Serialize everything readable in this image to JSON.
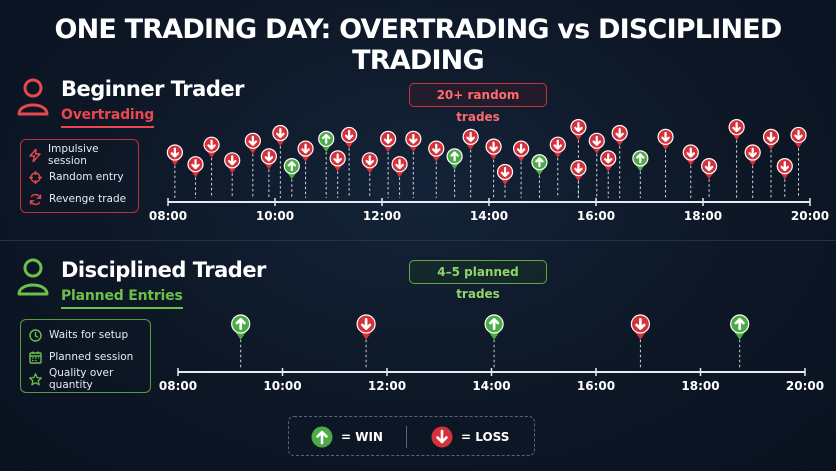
{
  "title": "ONE TRADING DAY: OVERTRADING vs DISCIPLINED TRADING",
  "beginner": {
    "name": "Beginner Trader",
    "subtitle": "Overtrading",
    "badge": "20+ random trades",
    "legend": [
      {
        "icon": "lightning-icon",
        "label": "Impulsive session"
      },
      {
        "icon": "crosshair-icon",
        "label": "Random entry"
      },
      {
        "icon": "refresh-icon",
        "label": "Revenge trade"
      }
    ],
    "axis_ticks": [
      "08:00",
      "10:00",
      "12:00",
      "14:00",
      "16:00",
      "18:00",
      "20:00"
    ],
    "trades": [
      {
        "time": 8.15,
        "result": "loss",
        "level": 0.5
      },
      {
        "time": 8.6,
        "result": "loss",
        "level": 0.2
      },
      {
        "time": 8.95,
        "result": "loss",
        "level": 0.7
      },
      {
        "time": 9.4,
        "result": "loss",
        "level": 0.3
      },
      {
        "time": 9.85,
        "result": "loss",
        "level": 0.8
      },
      {
        "time": 10.2,
        "result": "loss",
        "level": 0.4
      },
      {
        "time": 10.45,
        "result": "loss",
        "level": 1.0
      },
      {
        "time": 10.7,
        "result": "win",
        "level": 0.15
      },
      {
        "time": 11.0,
        "result": "loss",
        "level": 0.6
      },
      {
        "time": 11.45,
        "result": "win",
        "level": 0.85
      },
      {
        "time": 11.7,
        "result": "loss",
        "level": 0.35
      },
      {
        "time": 11.95,
        "result": "loss",
        "level": 0.95
      },
      {
        "time": 12.4,
        "result": "loss",
        "level": 0.3
      },
      {
        "time": 12.8,
        "result": "loss",
        "level": 0.85
      },
      {
        "time": 13.05,
        "result": "loss",
        "level": 0.2
      },
      {
        "time": 13.35,
        "result": "loss",
        "level": 0.85
      },
      {
        "time": 13.85,
        "result": "loss",
        "level": 0.6
      },
      {
        "time": 14.25,
        "result": "win",
        "level": 0.4
      },
      {
        "time": 14.6,
        "result": "loss",
        "level": 0.9
      },
      {
        "time": 15.1,
        "result": "loss",
        "level": 0.65
      },
      {
        "time": 15.35,
        "result": "loss",
        "level": 0.0
      },
      {
        "time": 15.7,
        "result": "loss",
        "level": 0.6
      },
      {
        "time": 16.1,
        "result": "win",
        "level": 0.25
      },
      {
        "time": 16.5,
        "result": "loss",
        "level": 0.7
      },
      {
        "time": 16.95,
        "result": "loss",
        "level": 1.15
      },
      {
        "time": 16.95,
        "result": "loss",
        "level": 0.1
      },
      {
        "time": 17.35,
        "result": "loss",
        "level": 0.8
      },
      {
        "time": 17.6,
        "result": "loss",
        "level": 0.35
      },
      {
        "time": 17.85,
        "result": "loss",
        "level": 1.0
      },
      {
        "time": 18.3,
        "result": "win",
        "level": 0.35
      },
      {
        "time": 18.85,
        "result": "loss",
        "level": 0.9
      },
      {
        "time": 19.4,
        "result": "loss",
        "level": 0.5
      },
      {
        "time": 19.8,
        "result": "loss",
        "level": 0.15
      },
      {
        "time": 20.4,
        "result": "loss",
        "level": 1.15
      },
      {
        "time": 20.75,
        "result": "loss",
        "level": 0.5
      },
      {
        "time": 21.15,
        "result": "loss",
        "level": 0.9
      },
      {
        "time": 21.45,
        "result": "loss",
        "level": 0.15
      },
      {
        "time": 21.75,
        "result": "loss",
        "level": 0.95
      }
    ]
  },
  "disciplined": {
    "name": "Disciplined Trader",
    "subtitle": "Planned Entries",
    "badge": "4–5 planned trades",
    "legend": [
      {
        "icon": "clock-icon",
        "label": "Waits for setup"
      },
      {
        "icon": "calendar-icon",
        "label": "Planned session"
      },
      {
        "icon": "star-icon",
        "label": "Quality over quantity"
      }
    ],
    "axis_ticks": [
      "08:00",
      "10:00",
      "12:00",
      "14:00",
      "16:00",
      "18:00",
      "20:00"
    ],
    "trades": [
      {
        "time": 9.2,
        "result": "win"
      },
      {
        "time": 11.6,
        "result": "loss"
      },
      {
        "time": 14.05,
        "result": "win"
      },
      {
        "time": 16.85,
        "result": "loss"
      },
      {
        "time": 18.75,
        "result": "win"
      }
    ]
  },
  "key": {
    "win_label": "= WIN",
    "loss_label": "= LOSS"
  },
  "colors": {
    "loss": "#d5313a",
    "win": "#4caa47",
    "accent_red": "#e8474d",
    "accent_green": "#6cc04a"
  }
}
